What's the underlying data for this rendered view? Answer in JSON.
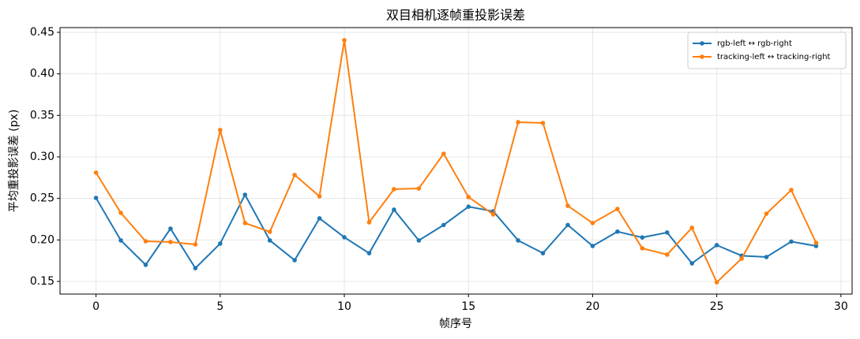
{
  "chart_data": {
    "type": "line",
    "title": "双目相机逐帧重投影误差",
    "xlabel": "帧序号",
    "ylabel": "平均重投影误差 (px)",
    "x": [
      0,
      1,
      2,
      3,
      4,
      5,
      6,
      7,
      8,
      9,
      10,
      11,
      12,
      13,
      14,
      15,
      16,
      17,
      18,
      19,
      20,
      21,
      22,
      23,
      24,
      25,
      26,
      27,
      28,
      29
    ],
    "series": [
      {
        "name": "rgb-left ↔ rgb-right",
        "color": "#1f77b4",
        "values": [
          0.2506,
          0.1994,
          0.17,
          0.2136,
          0.166,
          0.1956,
          0.2544,
          0.1994,
          0.1756,
          0.226,
          0.2032,
          0.184,
          0.2364,
          0.1994,
          0.218,
          0.24,
          0.2345,
          0.1994,
          0.184,
          0.218,
          0.1927,
          0.21,
          0.203,
          0.2089,
          0.1718,
          0.1937,
          0.181,
          0.1794,
          0.198,
          0.1927
        ]
      },
      {
        "name": "tracking-left ↔ tracking-right",
        "color": "#ff7f0e",
        "values": [
          0.281,
          0.2326,
          0.1984,
          0.1975,
          0.1946,
          0.3323,
          0.2203,
          0.2098,
          0.2782,
          0.2525,
          0.4405,
          0.2212,
          0.2611,
          0.262,
          0.3038,
          0.2516,
          0.2307,
          0.3418,
          0.3408,
          0.2411,
          0.2203,
          0.2373,
          0.1899,
          0.1823,
          0.2146,
          0.149,
          0.1775,
          0.2316,
          0.2601,
          0.1965
        ]
      }
    ],
    "xlim": [
      -1.45,
      30.45
    ],
    "ylim": [
      0.1348,
      0.4557
    ],
    "xticks": [
      0,
      5,
      10,
      15,
      20,
      25,
      30
    ],
    "yticks": [
      0.15,
      {
        "value": 0.2,
        "label": "0.20"
      },
      0.25,
      {
        "value": 0.3,
        "label": "0.30"
      },
      0.35,
      {
        "value": 0.4,
        "label": "0.40"
      },
      0.45
    ],
    "grid": true,
    "legend": "upper-right"
  }
}
